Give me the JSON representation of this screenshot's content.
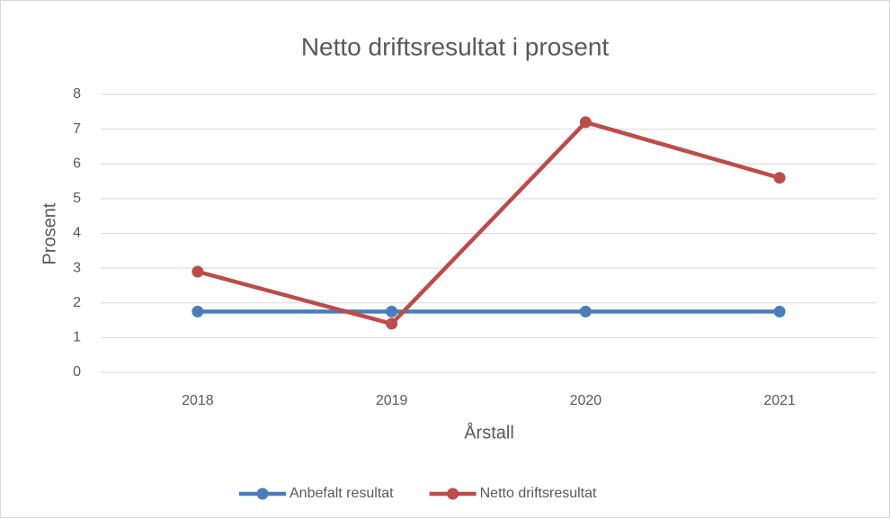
{
  "chart_data": {
    "type": "line",
    "title": "Netto driftsresultat i prosent",
    "x_label": "Årstall",
    "y_label": "Prosent",
    "categories": [
      "2018",
      "2019",
      "2020",
      "2021"
    ],
    "series": [
      {
        "name": "Anbefalt resultat",
        "color": "#4a7ebb",
        "values": [
          1.75,
          1.75,
          1.75,
          1.75
        ]
      },
      {
        "name": "Netto driftsresultat",
        "color": "#be4b48",
        "values": [
          2.9,
          1.4,
          7.2,
          5.6
        ]
      }
    ],
    "ylim": [
      0,
      8
    ],
    "yticks": [
      0,
      1,
      2,
      3,
      4,
      5,
      6,
      7,
      8
    ],
    "grid": true,
    "legend": "bottom"
  }
}
